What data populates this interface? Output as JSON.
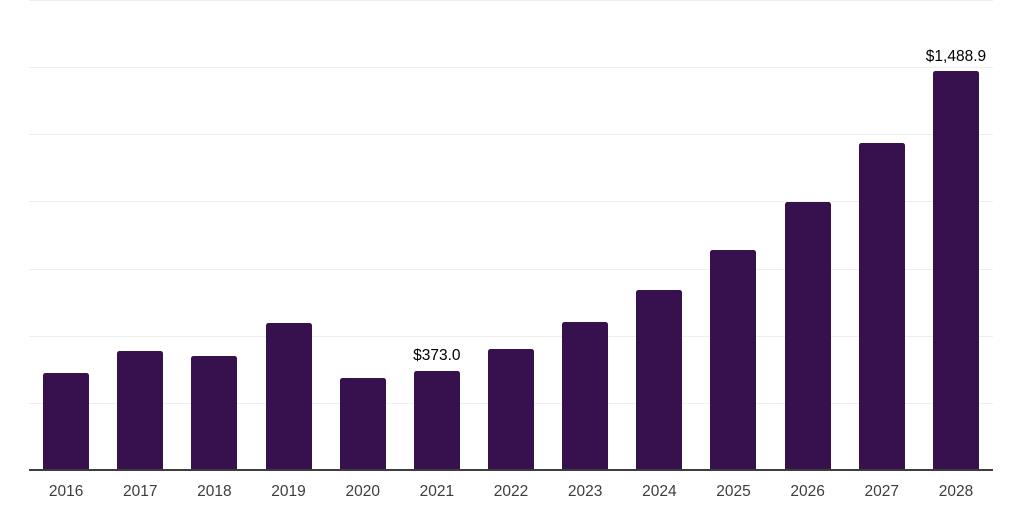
{
  "chart_data": {
    "type": "bar",
    "title": "",
    "xlabel": "",
    "ylabel": "",
    "categories": [
      "2016",
      "2017",
      "2018",
      "2019",
      "2020",
      "2021",
      "2022",
      "2023",
      "2024",
      "2025",
      "2026",
      "2027",
      "2028"
    ],
    "values": [
      364,
      446,
      428,
      550,
      348,
      373.0,
      455,
      554,
      675,
      823,
      1003,
      1222,
      1488.9
    ],
    "data_labels": {
      "2021": "$373.0",
      "2028": "$1,488.9"
    },
    "ylim": [
      0,
      1750
    ],
    "grid_step": 250,
    "grid": "horizontal",
    "legend": "none",
    "y_axis_labels_visible": false,
    "colors": {
      "bar": "#36114D",
      "gridline": "#efefef",
      "axis_line": "#3d3d3d",
      "tick_label": "#3d3d3d",
      "data_label": "#000000",
      "background": "#ffffff"
    }
  }
}
